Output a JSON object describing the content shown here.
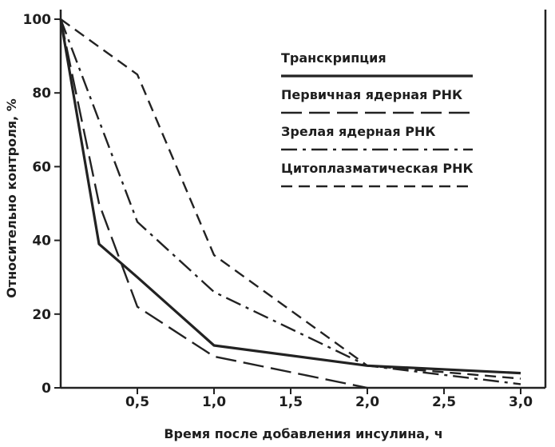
{
  "chart_data": {
    "type": "line",
    "title": "",
    "xlabel": "Время после добавления инсулина, ч",
    "ylabel": "Относительно контроля, %",
    "xlim": [
      0,
      3.0
    ],
    "ylim": [
      0,
      100
    ],
    "x_ticks": [
      0.5,
      1.0,
      1.5,
      2.0,
      2.5,
      3.0
    ],
    "x_tick_labels": [
      "0,5",
      "1,0",
      "1,5",
      "2,0",
      "2,5",
      "3,0"
    ],
    "y_ticks": [
      0,
      20,
      40,
      60,
      80,
      100
    ],
    "y_tick_labels": [
      "0",
      "20",
      "40",
      "60",
      "80",
      "100"
    ],
    "grid": false,
    "legend_position": "top-right",
    "series": [
      {
        "name": "Транскрипция",
        "style": "solid",
        "x": [
          0,
          0.25,
          0.5,
          1.0,
          2.0,
          3.0
        ],
        "y": [
          100,
          39,
          30,
          11.5,
          6,
          4
        ]
      },
      {
        "name": "Первичная ядерная РНК",
        "style": "long-dash",
        "x": [
          0,
          0.25,
          0.5,
          1.0,
          2.0
        ],
        "y": [
          100,
          50,
          22,
          8.5,
          0
        ]
      },
      {
        "name": "Зрелая ядерная РНК",
        "style": "dash-dot",
        "x": [
          0,
          0.5,
          1.0,
          2.0,
          3.0
        ],
        "y": [
          100,
          45,
          26,
          6,
          1
        ]
      },
      {
        "name": "Цитоплазматическая РНК",
        "style": "short-dash",
        "x": [
          0,
          0.5,
          1.0,
          2.0,
          3.0
        ],
        "y": [
          100,
          85,
          36,
          6,
          2.5
        ]
      }
    ]
  }
}
